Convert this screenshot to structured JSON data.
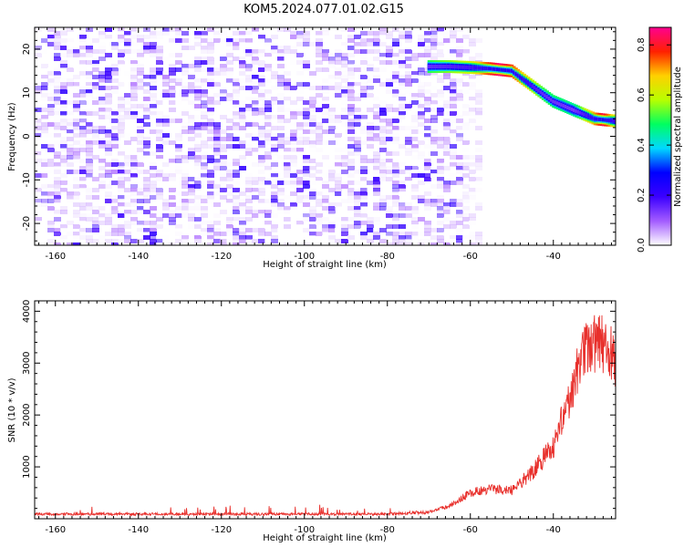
{
  "figure_title": "KOM5.2024.077.01.02.G15",
  "chart_data": [
    {
      "type": "heatmap",
      "xlabel": "Height of straight line (km)",
      "ylabel": "Frequency (Hz)",
      "xlim": [
        -165,
        -25
      ],
      "ylim": [
        -25,
        25
      ],
      "x_ticks": [
        -160,
        -140,
        -120,
        -100,
        -80,
        -60,
        -40
      ],
      "y_ticks": [
        -20,
        -10,
        0,
        10,
        20
      ],
      "colorbar": {
        "label": "Normalized spectral amplitude",
        "range": [
          0,
          0.87
        ],
        "ticks": [
          0.0,
          0.2,
          0.4,
          0.6,
          0.8
        ],
        "colormap": [
          "#ffffff",
          "#a35cff",
          "#3b00ff",
          "#0000ff",
          "#00d8ff",
          "#00ff60",
          "#b8ff00",
          "#ffd000",
          "#ff2000",
          "#ff0090"
        ]
      },
      "noise_region_x": [
        -165,
        -60
      ],
      "signal_track": [
        {
          "x": -70,
          "freq": 16.0
        },
        {
          "x": -65,
          "freq": 16.0
        },
        {
          "x": -60,
          "freq": 15.8
        },
        {
          "x": -55,
          "freq": 15.5
        },
        {
          "x": -50,
          "freq": 15.0
        },
        {
          "x": -45,
          "freq": 11.5
        },
        {
          "x": -40,
          "freq": 8.0
        },
        {
          "x": -35,
          "freq": 6.0
        },
        {
          "x": -30,
          "freq": 4.0
        },
        {
          "x": -25,
          "freq": 3.5
        }
      ],
      "signal_amplitude": [
        {
          "x": -70,
          "amp": 0.5
        },
        {
          "x": -60,
          "amp": 0.6
        },
        {
          "x": -53,
          "amp": 0.85
        },
        {
          "x": -50,
          "amp": 0.75
        },
        {
          "x": -42,
          "amp": 0.5
        },
        {
          "x": -35,
          "amp": 0.45
        },
        {
          "x": -28,
          "amp": 0.82
        },
        {
          "x": -25,
          "amp": 0.6
        }
      ]
    },
    {
      "type": "line",
      "xlabel": "Height of straight line (km)",
      "ylabel": "SNR (10 * v/v)",
      "xlim": [
        -165,
        -25
      ],
      "ylim": [
        0,
        4200
      ],
      "x_ticks": [
        -160,
        -140,
        -120,
        -100,
        -80,
        -60,
        -40
      ],
      "y_ticks": [
        1000,
        2000,
        3000,
        4000
      ],
      "series": [
        {
          "color": "#e8302c",
          "envelope": [
            {
              "x": -165,
              "snr": 90
            },
            {
              "x": -80,
              "snr": 90
            },
            {
              "x": -70,
              "snr": 130
            },
            {
              "x": -65,
              "snr": 250
            },
            {
              "x": -60,
              "snr": 500
            },
            {
              "x": -55,
              "snr": 580
            },
            {
              "x": -50,
              "snr": 550
            },
            {
              "x": -45,
              "snr": 900
            },
            {
              "x": -40,
              "snr": 1400
            },
            {
              "x": -37,
              "snr": 2100
            },
            {
              "x": -33,
              "snr": 3200
            },
            {
              "x": -30,
              "snr": 3400
            },
            {
              "x": -27,
              "snr": 3300
            },
            {
              "x": -25,
              "snr": 2900
            }
          ]
        }
      ]
    }
  ]
}
